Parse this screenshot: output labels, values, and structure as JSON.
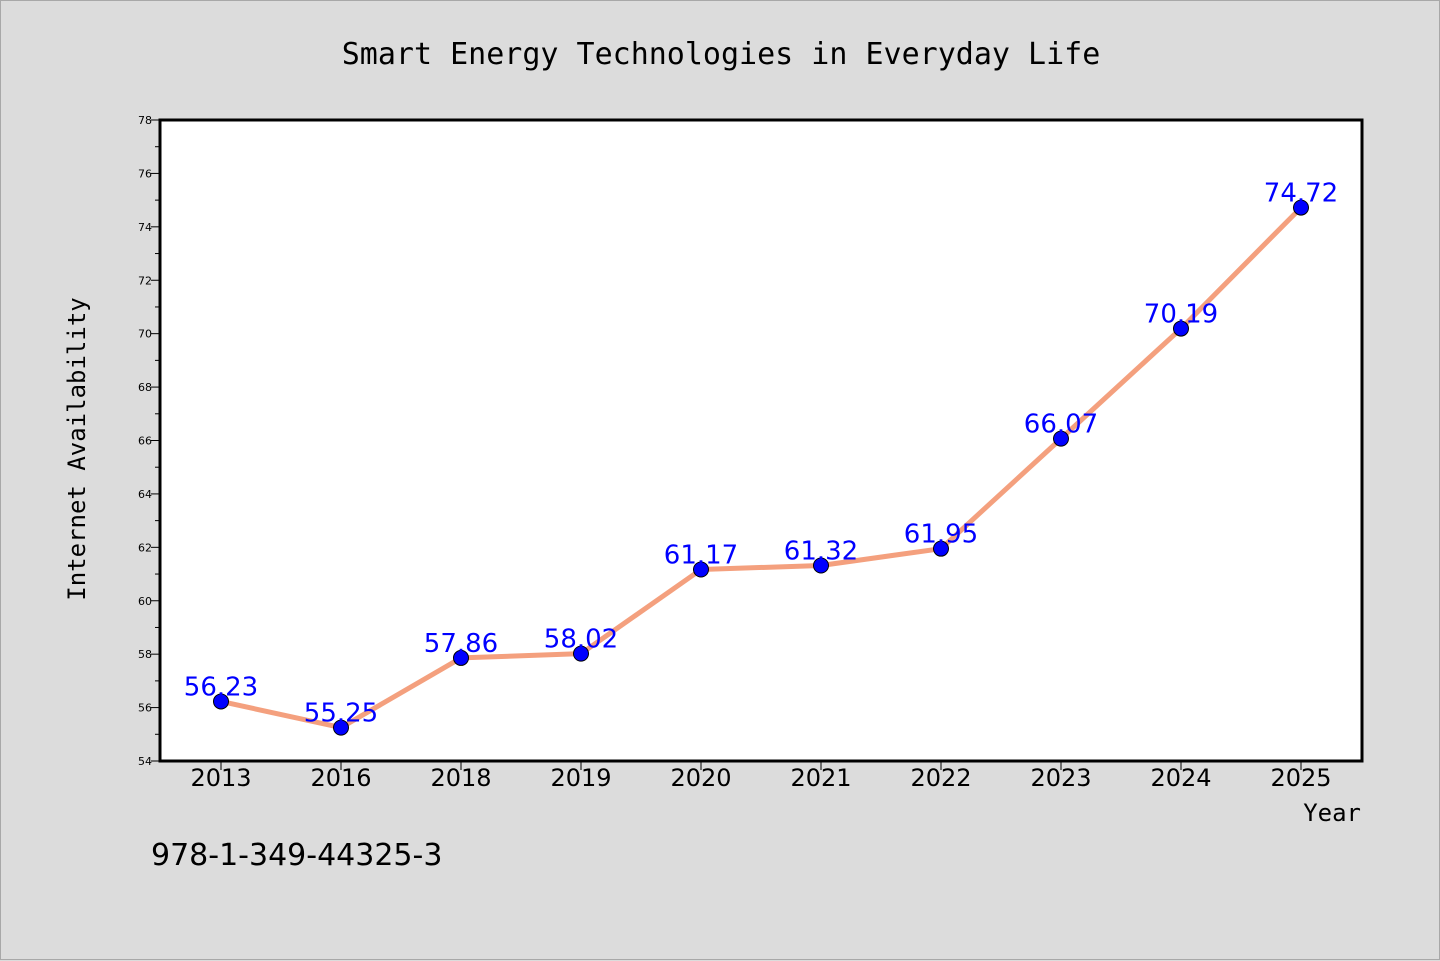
{
  "chart_data": {
    "type": "line",
    "title": "Smart Energy Technologies in Everyday Life",
    "xlabel": "Year",
    "ylabel": "Internet Availability",
    "categories": [
      "2013",
      "2016",
      "2018",
      "2019",
      "2020",
      "2021",
      "2022",
      "2023",
      "2024",
      "2025"
    ],
    "series": [
      {
        "values": [
          56.23,
          55.25,
          57.86,
          58.02,
          61.17,
          61.32,
          61.95,
          66.07,
          70.19,
          74.72
        ],
        "color": "#f4a07e",
        "marker_color": "#0000ff"
      }
    ],
    "data_labels": [
      "56.23",
      "55.25",
      "57.86",
      "58.02",
      "61.17",
      "61.32",
      "61.95",
      "66.07",
      "70.19",
      "74.72"
    ],
    "ylim": [
      54,
      78
    ],
    "yticks": [
      "54",
      "56",
      "58",
      "60",
      "62",
      "64",
      "66",
      "68",
      "70",
      "72",
      "74",
      "76",
      "78"
    ],
    "grid": false,
    "legend": "none"
  },
  "footer": {
    "isbn": "978-1-349-44325-3"
  },
  "colors": {
    "background": "#dcdcdc",
    "plot_background": "#ffffff",
    "label": "#0000ff"
  }
}
